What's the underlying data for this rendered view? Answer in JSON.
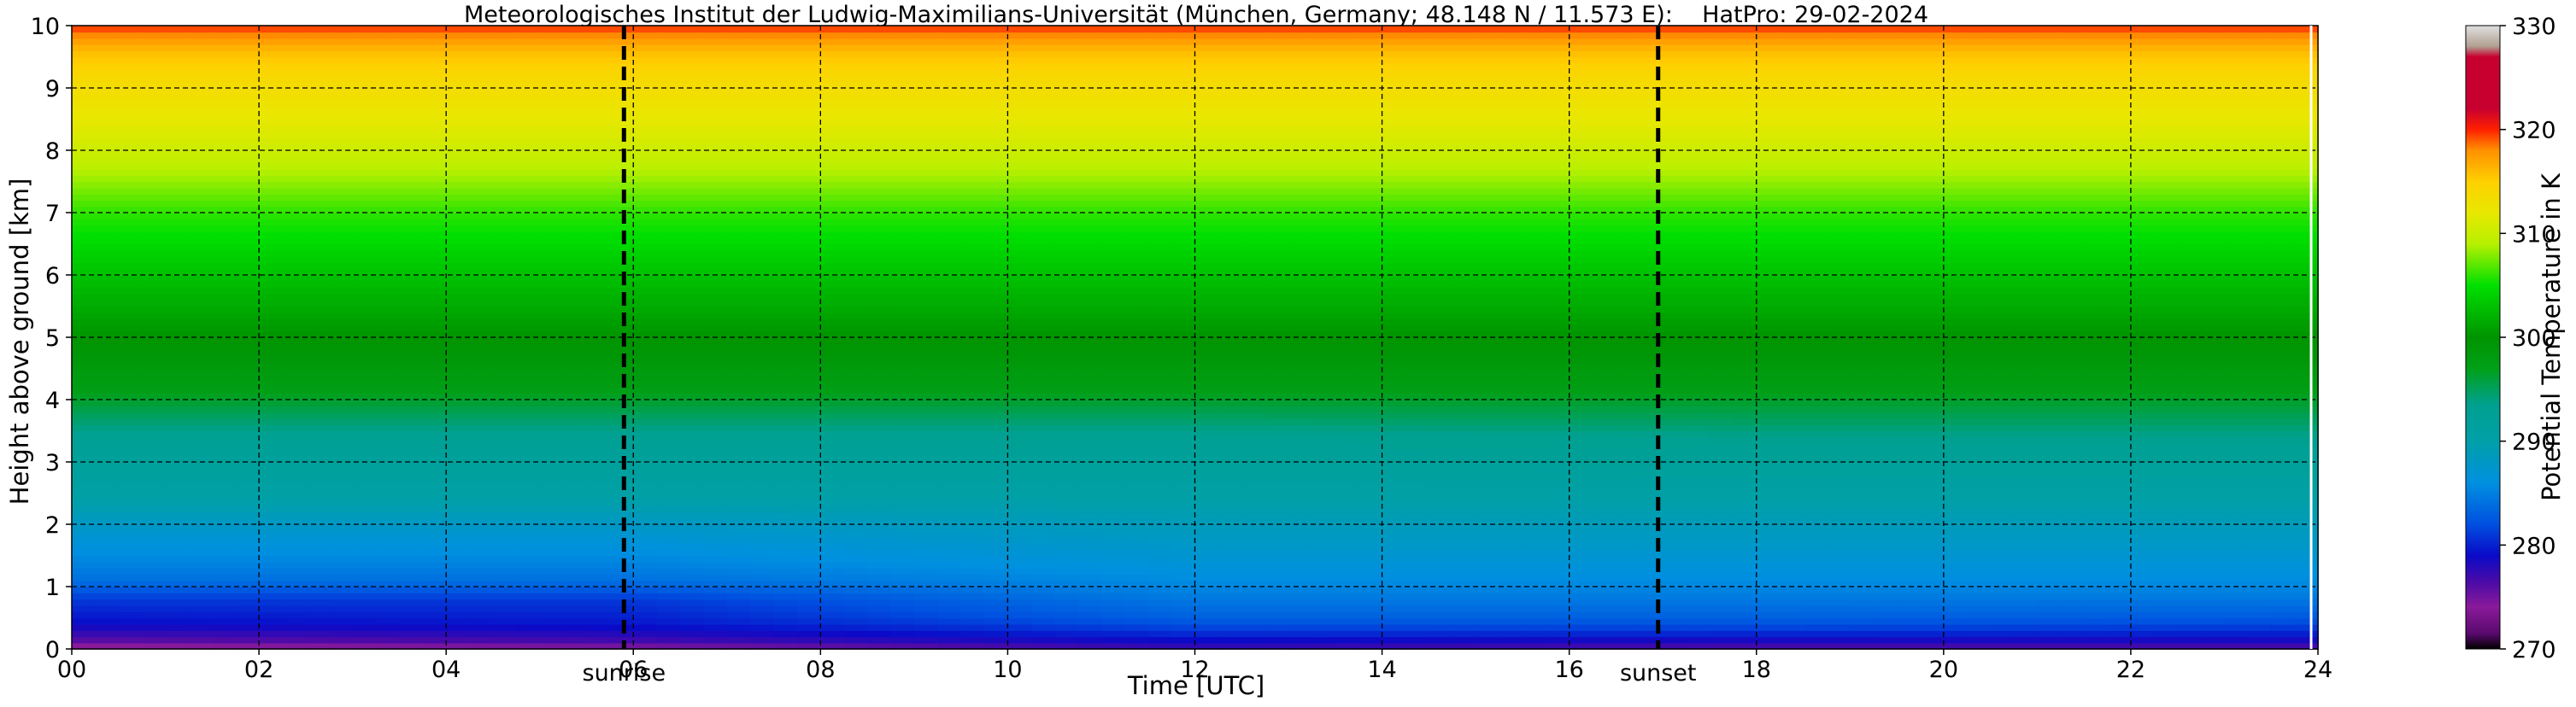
{
  "chart_data": {
    "type": "heatmap",
    "title": "Meteorologisches Institut der Ludwig-Maximilians-Universität (München, Germany; 48.148 N / 11.573 E):    HatPro: 29-02-2024",
    "xlabel": "Time [UTC]",
    "ylabel": "Height above ground [km]",
    "xlim": [
      0,
      24
    ],
    "ylim": [
      0,
      10
    ],
    "x_ticks": [
      "00",
      "02",
      "04",
      "06",
      "08",
      "10",
      "12",
      "14",
      "16",
      "18",
      "20",
      "22",
      "24"
    ],
    "y_ticks": [
      "0",
      "1",
      "2",
      "3",
      "4",
      "5",
      "6",
      "7",
      "8",
      "9",
      "10"
    ],
    "grid": true,
    "colorbar": {
      "label": "Potential Temperature in K",
      "min": 270,
      "max": 330,
      "ticks": [
        "270",
        "280",
        "290",
        "300",
        "310",
        "320",
        "330"
      ],
      "colors": [
        {
          "t": 270,
          "c": "#000000"
        },
        {
          "t": 271.5,
          "c": "#5a0a6e"
        },
        {
          "t": 274,
          "c": "#8a1a9a"
        },
        {
          "t": 276.5,
          "c": "#4a0aa8"
        },
        {
          "t": 279,
          "c": "#0a0ac8"
        },
        {
          "t": 282,
          "c": "#0050e0"
        },
        {
          "t": 286,
          "c": "#0090e0"
        },
        {
          "t": 290,
          "c": "#00a0a8"
        },
        {
          "t": 293.5,
          "c": "#00a090"
        },
        {
          "t": 297,
          "c": "#00a018"
        },
        {
          "t": 300,
          "c": "#009400"
        },
        {
          "t": 305,
          "c": "#00e000"
        },
        {
          "t": 309,
          "c": "#b8f000"
        },
        {
          "t": 312,
          "c": "#e8e800"
        },
        {
          "t": 315,
          "c": "#ffd000"
        },
        {
          "t": 318,
          "c": "#ff9000"
        },
        {
          "t": 320,
          "c": "#ff2000"
        },
        {
          "t": 322,
          "c": "#c80030"
        },
        {
          "t": 327,
          "c": "#c80030"
        },
        {
          "t": 328,
          "c": "#b0a090"
        },
        {
          "t": 330,
          "c": "#e0e0e0"
        }
      ]
    },
    "profiles": [
      {
        "time": 0,
        "heights": [
          0,
          0.15,
          0.4,
          0.8,
          1.1,
          1.8,
          2.4,
          3.4,
          4.2,
          5.0,
          6.0,
          7.0,
          7.8,
          8.5,
          9.2,
          9.6,
          9.9,
          10
        ],
        "theta": [
          273,
          276,
          279,
          281,
          284,
          287,
          290,
          293,
          297.5,
          300,
          303,
          306,
          309.5,
          312,
          314,
          316,
          318.5,
          320
        ]
      },
      {
        "time": 6,
        "heights": [
          0,
          0.15,
          0.4,
          0.8,
          1.1,
          1.8,
          2.4,
          3.4,
          4.2,
          5.0,
          6.0,
          7.0,
          7.8,
          8.5,
          9.2,
          9.6,
          9.9,
          10
        ],
        "theta": [
          274,
          277,
          279.5,
          281,
          284,
          287,
          290,
          293,
          297.5,
          300,
          303,
          306,
          309.5,
          312,
          314,
          316,
          318.5,
          320
        ]
      },
      {
        "time": 12,
        "heights": [
          0,
          0.15,
          0.3,
          0.5,
          0.9,
          1.6,
          2.4,
          3.4,
          4.2,
          5.0,
          6.0,
          7.0,
          7.8,
          8.5,
          9.2,
          9.6,
          9.9,
          10
        ],
        "theta": [
          277,
          279,
          281,
          283,
          285,
          287.5,
          290,
          293,
          297.5,
          300,
          303,
          306,
          309.5,
          312,
          314,
          316,
          318.5,
          320
        ]
      },
      {
        "time": 18,
        "heights": [
          0,
          0.15,
          0.3,
          0.5,
          0.9,
          1.6,
          2.4,
          3.4,
          4.2,
          5.0,
          6.0,
          7.0,
          7.8,
          8.5,
          9.2,
          9.6,
          9.9,
          10
        ],
        "theta": [
          276,
          278.5,
          281,
          283,
          285,
          287.5,
          290,
          293.5,
          297.5,
          300,
          303,
          306,
          309.5,
          312,
          314,
          316,
          318.5,
          320
        ]
      },
      {
        "time": 24,
        "heights": [
          0,
          0.15,
          0.3,
          0.5,
          0.9,
          1.6,
          2.4,
          3.4,
          4.2,
          5.0,
          6.0,
          7.0,
          7.8,
          8.5,
          9.2,
          9.6,
          9.9,
          10
        ],
        "theta": [
          276,
          278.5,
          280.5,
          282.5,
          285,
          287.5,
          290,
          293.5,
          297.5,
          300,
          303,
          306,
          309.5,
          312,
          314,
          316,
          318.5,
          320
        ]
      }
    ],
    "events": [
      {
        "label": "sunrise",
        "time": 5.9
      },
      {
        "label": "sunset",
        "time": 16.95
      }
    ]
  }
}
